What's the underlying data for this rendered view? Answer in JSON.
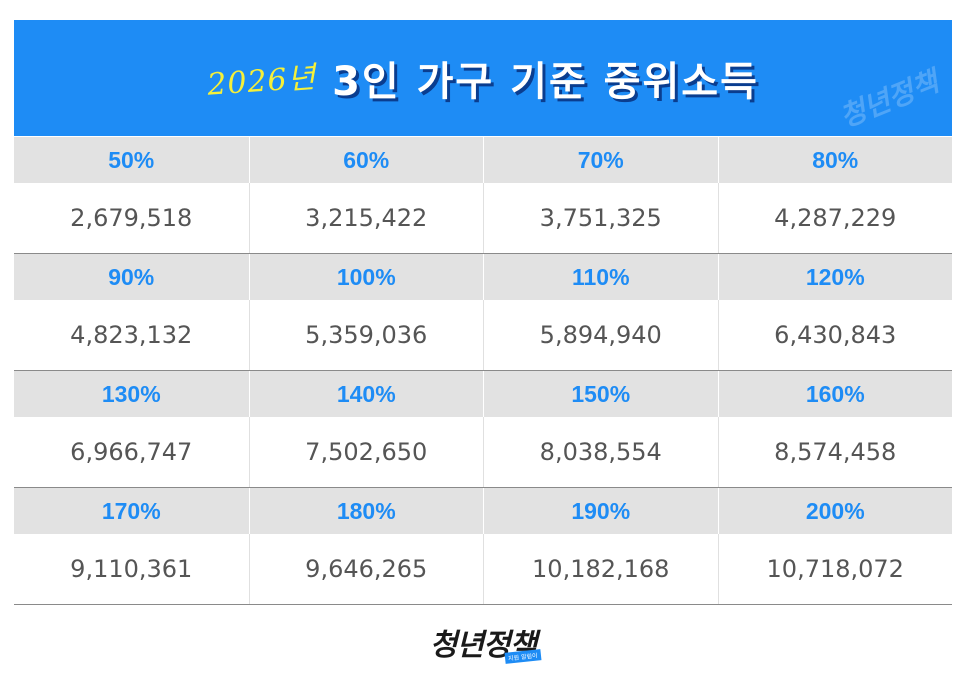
{
  "banner": {
    "year": "2026년",
    "title": "3인 가구 기준 중위소득",
    "watermark": "청년정책",
    "bg_color": "#1e8cf5",
    "year_color": "#f5f03a"
  },
  "table": {
    "rows": [
      {
        "headers": [
          "50%",
          "60%",
          "70%",
          "80%"
        ],
        "values": [
          "2,679,518",
          "3,215,422",
          "3,751,325",
          "4,287,229"
        ]
      },
      {
        "headers": [
          "90%",
          "100%",
          "110%",
          "120%"
        ],
        "values": [
          "4,823,132",
          "5,359,036",
          "5,894,940",
          "6,430,843"
        ]
      },
      {
        "headers": [
          "130%",
          "140%",
          "150%",
          "160%"
        ],
        "values": [
          "6,966,747",
          "7,502,650",
          "8,038,554",
          "8,574,458"
        ]
      },
      {
        "headers": [
          "170%",
          "180%",
          "190%",
          "200%"
        ],
        "values": [
          "9,110,361",
          "9,646,265",
          "10,182,168",
          "10,718,072"
        ]
      }
    ],
    "header_color": "#1e8cf5",
    "header_bg": "#e2e2e2"
  },
  "footer": {
    "logo_text": "청년정책",
    "logo_tag": "지원 알림이"
  }
}
